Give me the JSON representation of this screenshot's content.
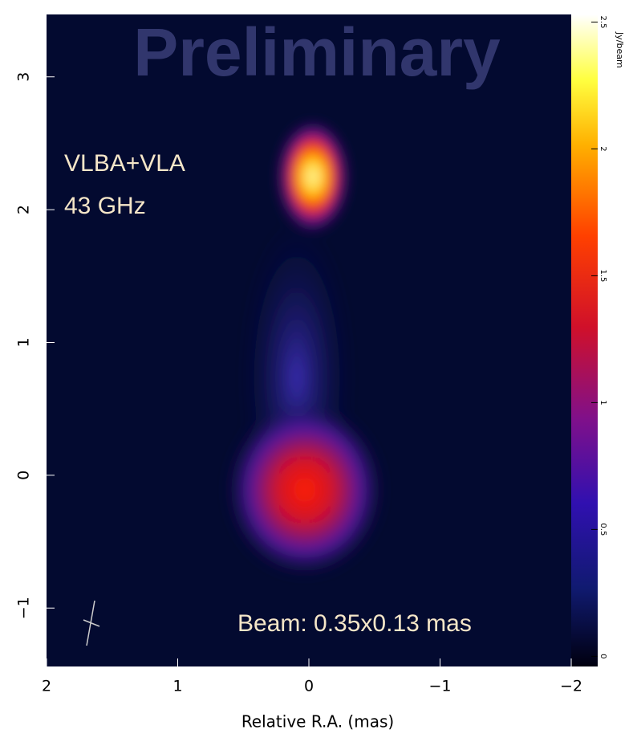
{
  "chart_data": {
    "type": "image",
    "watermark": "Preliminary",
    "annotations": [
      "VLBA+VLA",
      "43 GHz",
      "Beam: 0.35x0.13 mas"
    ],
    "xlabel": "Relative R.A. (mas)",
    "xlim": [
      2,
      -2
    ],
    "xticks": [
      2,
      1,
      0,
      {
        "value": -1,
        "label": "−1"
      },
      {
        "value": -2,
        "label": "−2"
      }
    ],
    "ylim": [
      -1.44,
      3.47
    ],
    "yticks": [
      {
        "value": -1,
        "label": "−1"
      },
      0,
      1,
      2,
      3
    ],
    "colorbar": {
      "label": "Jy/beam",
      "lim": [
        -0.04,
        2.53
      ],
      "ticks": [
        0,
        0.5,
        1,
        1.5,
        2,
        2.5
      ]
    }
  }
}
